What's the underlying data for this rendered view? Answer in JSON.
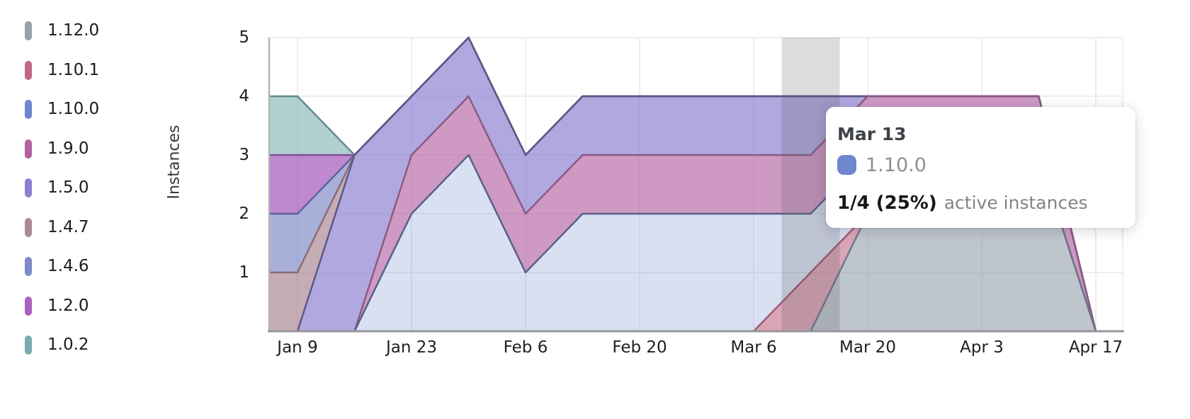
{
  "y_axis": {
    "label": "Instances",
    "ticks": [
      "1",
      "2",
      "3",
      "4",
      "5"
    ]
  },
  "x_axis": {
    "ticks": [
      "Jan 9",
      "Jan 23",
      "Feb 6",
      "Feb 20",
      "Mar 6",
      "Mar 20",
      "Apr 3",
      "Apr 17"
    ]
  },
  "tooltip": {
    "date": "Mar 13",
    "series": "1.10.0",
    "swatch_color": "#6d86cc",
    "value": "1/4 (25%)",
    "suffix": "active instances"
  },
  "chart_data": {
    "type": "area",
    "stacked": true,
    "ylabel": "Instances",
    "ylim": [
      0,
      5
    ],
    "grid": true,
    "legend_position": "left",
    "unit": "instances",
    "x": [
      "Jan 2",
      "Jan 9",
      "Jan 16",
      "Jan 23",
      "Jan 30",
      "Feb 6",
      "Feb 13",
      "Feb 20",
      "Feb 27",
      "Mar 6",
      "Mar 13",
      "Mar 20",
      "Mar 27",
      "Apr 3",
      "Apr 10",
      "Apr 17"
    ],
    "x_tick_labels": [
      "Jan 9",
      "Jan 23",
      "Feb 6",
      "Feb 20",
      "Mar 6",
      "Mar 20",
      "Apr 3",
      "Apr 17"
    ],
    "highlight_x": "Mar 13",
    "highlight_index": 10,
    "totals": [
      4,
      4,
      3,
      4,
      5,
      3,
      4,
      4,
      4,
      4,
      4,
      4,
      4,
      4,
      4,
      0
    ],
    "series": [
      {
        "name": "1.12.0",
        "color": "#97a1ad",
        "fill_alpha": 0.62,
        "line": "#70768a",
        "values": [
          0,
          0,
          0,
          0,
          0,
          0,
          0,
          0,
          0,
          0,
          0,
          2,
          3,
          3,
          3,
          0
        ]
      },
      {
        "name": "1.10.1",
        "color": "#c16983",
        "fill_alpha": 0.6,
        "line": "#9c5a73",
        "values": [
          0,
          0,
          0,
          0,
          0,
          0,
          0,
          0,
          0,
          0,
          1,
          0,
          0,
          0,
          0,
          0
        ]
      },
      {
        "name": "1.10.0",
        "color": "#6d86cc",
        "fill_alpha": 0.26,
        "line": "#58608a",
        "values": [
          0,
          0,
          0,
          2,
          3,
          1,
          2,
          2,
          2,
          2,
          1,
          1,
          0,
          0,
          0,
          0
        ]
      },
      {
        "name": "1.9.0",
        "color": "#b2609f",
        "fill_alpha": 0.64,
        "line": "#8a5a84",
        "values": [
          0,
          0,
          0,
          1,
          1,
          1,
          1,
          1,
          1,
          1,
          1,
          1,
          1,
          1,
          1,
          0
        ]
      },
      {
        "name": "1.5.0",
        "color": "#8c7fd1",
        "fill_alpha": 0.68,
        "line": "#5d5787",
        "values": [
          0,
          0,
          3,
          1,
          1,
          1,
          1,
          1,
          1,
          1,
          1,
          0,
          0,
          0,
          0,
          0
        ]
      },
      {
        "name": "1.4.7",
        "color": "#ac8a95",
        "fill_alpha": 0.7,
        "line": "#8c6b77",
        "values": [
          1,
          1,
          0,
          0,
          0,
          0,
          0,
          0,
          0,
          0,
          0,
          0,
          0,
          0,
          0,
          0
        ]
      },
      {
        "name": "1.4.6",
        "color": "#7e89c8",
        "fill_alpha": 0.67,
        "line": "#5c6499",
        "values": [
          1,
          1,
          0,
          0,
          0,
          0,
          0,
          0,
          0,
          0,
          0,
          0,
          0,
          0,
          0,
          0
        ]
      },
      {
        "name": "1.2.0",
        "color": "#aa60c0",
        "fill_alpha": 0.75,
        "line": "#7e4f94",
        "values": [
          1,
          1,
          0,
          0,
          0,
          0,
          0,
          0,
          0,
          0,
          0,
          0,
          0,
          0,
          0,
          0
        ]
      },
      {
        "name": "1.0.2",
        "color": "#7bacb0",
        "fill_alpha": 0.59,
        "line": "#628c8d",
        "values": [
          1,
          1,
          0,
          0,
          0,
          0,
          0,
          0,
          0,
          0,
          0,
          0,
          0,
          0,
          0,
          0
        ]
      }
    ]
  }
}
